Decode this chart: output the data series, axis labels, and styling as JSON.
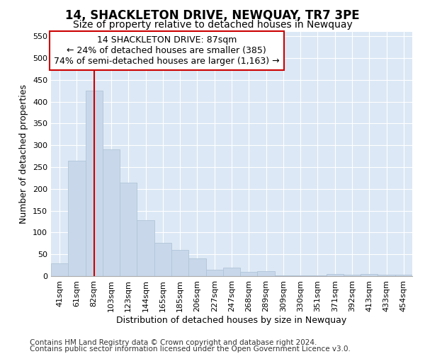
{
  "title": "14, SHACKLETON DRIVE, NEWQUAY, TR7 3PE",
  "subtitle": "Size of property relative to detached houses in Newquay",
  "xlabel": "Distribution of detached houses by size in Newquay",
  "ylabel": "Number of detached properties",
  "bar_labels": [
    "41sqm",
    "61sqm",
    "82sqm",
    "103sqm",
    "123sqm",
    "144sqm",
    "165sqm",
    "185sqm",
    "206sqm",
    "227sqm",
    "247sqm",
    "268sqm",
    "289sqm",
    "309sqm",
    "330sqm",
    "351sqm",
    "371sqm",
    "392sqm",
    "413sqm",
    "433sqm",
    "454sqm"
  ],
  "bar_values": [
    30,
    265,
    425,
    290,
    215,
    128,
    77,
    60,
    40,
    14,
    20,
    9,
    11,
    2,
    2,
    2,
    5,
    4,
    5,
    3,
    4
  ],
  "bar_color": "#c8d8ea",
  "bar_edge_color": "#b0c4d8",
  "red_line_x": 2,
  "ylim": [
    0,
    560
  ],
  "yticks": [
    0,
    50,
    100,
    150,
    200,
    250,
    300,
    350,
    400,
    450,
    500,
    550
  ],
  "annotation_line1": "14 SHACKLETON DRIVE: 87sqm",
  "annotation_line2": "← 24% of detached houses are smaller (385)",
  "annotation_line3": "74% of semi-detached houses are larger (1,163) →",
  "annotation_box_color": "#ffffff",
  "annotation_box_edge_color": "#cc0000",
  "footer_line1": "Contains HM Land Registry data © Crown copyright and database right 2024.",
  "footer_line2": "Contains public sector information licensed under the Open Government Licence v3.0.",
  "bg_color": "#ffffff",
  "plot_bg_color": "#dce8f5",
  "grid_color": "#ffffff",
  "title_fontsize": 12,
  "subtitle_fontsize": 10,
  "axis_label_fontsize": 9,
  "tick_fontsize": 8,
  "annotation_fontsize": 9,
  "footer_fontsize": 7.5
}
